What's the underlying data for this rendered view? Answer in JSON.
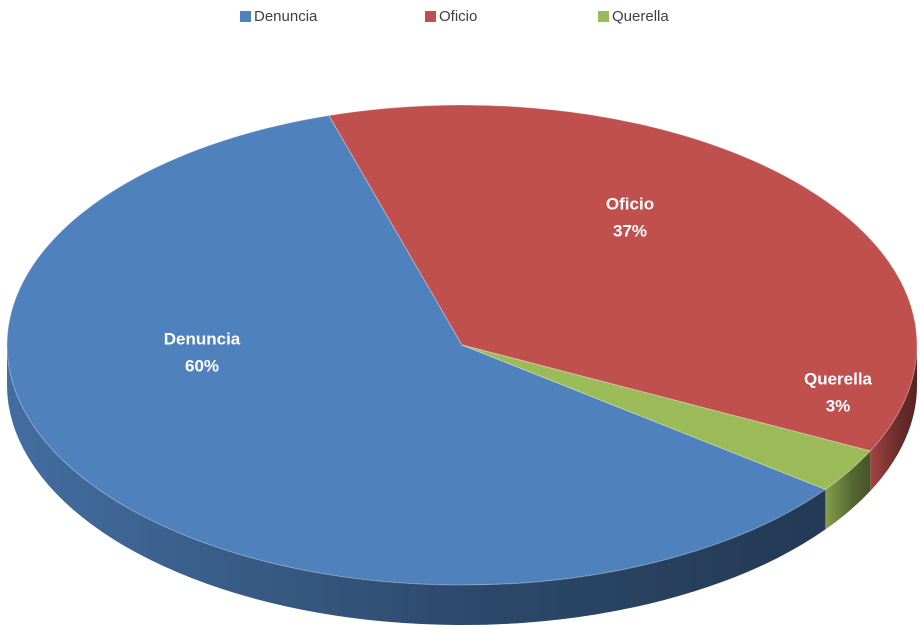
{
  "chart_data": {
    "type": "pie",
    "categories": [
      "Denuncia",
      "Oficio",
      "Querella"
    ],
    "values": [
      60,
      37,
      3
    ],
    "value_labels": [
      "60%",
      "37%",
      "3%"
    ],
    "colors": [
      "#4f81bd",
      "#c0504d",
      "#9bbb59"
    ],
    "legend": "top"
  }
}
